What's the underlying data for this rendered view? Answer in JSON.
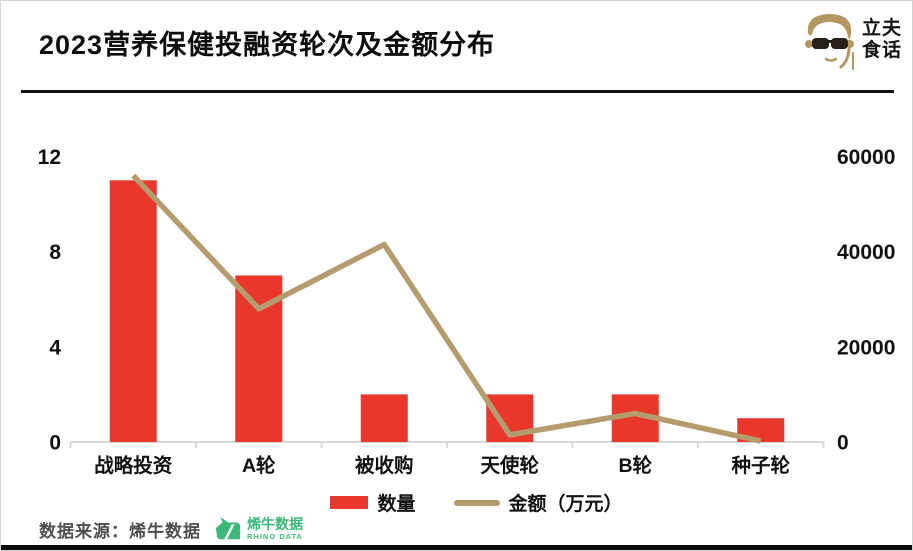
{
  "header": {
    "title": "2023营养保健投融资轮次及金额分布",
    "logo_name_line1": "立夫",
    "logo_name_line2": "食话"
  },
  "chart_data": {
    "type": "bar",
    "subtype": "bar+line dual-axis",
    "categories": [
      "战略投资",
      "A轮",
      "被收购",
      "天使轮",
      "B轮",
      "种子轮"
    ],
    "series": [
      {
        "name": "数量",
        "type": "bar",
        "axis": "left",
        "color": "#e9382b",
        "values": [
          11,
          7,
          2,
          2,
          2,
          1
        ]
      },
      {
        "name": "金额（万元）",
        "type": "line",
        "axis": "right",
        "color": "#b49c6e",
        "values": [
          56000,
          28000,
          41500,
          1500,
          6000,
          200
        ]
      }
    ],
    "left_axis": {
      "ticks": [
        0,
        4,
        8,
        12
      ],
      "max": 12
    },
    "right_axis": {
      "ticks": [
        0,
        20000,
        40000,
        60000
      ],
      "max": 60000
    },
    "grid": false,
    "legend_position": "bottom",
    "title": "2023营养保健投融资轮次及金额分布"
  },
  "footer": {
    "source_text": "数据来源：烯牛数据",
    "rhino_logo_text": "烯牛数据",
    "rhino_logo_subtext": "RHINO DATA"
  },
  "colors": {
    "bar_red": "#e9382b",
    "line_tan": "#b49c6e",
    "logo_tan": "#b49760",
    "sunglasses_dark": "#262018",
    "rhino_green": "#3cb878",
    "axis_gray": "#d9d9d9",
    "footer_gray": "#4f4f4f"
  }
}
